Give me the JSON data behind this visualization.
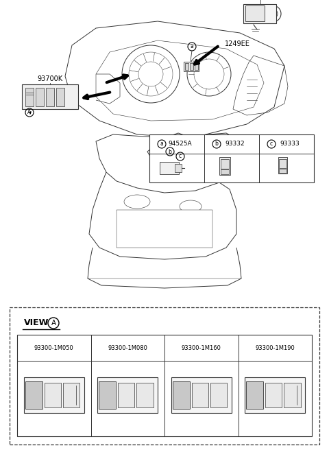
{
  "bg_color": "#ffffff",
  "fig_width": 4.8,
  "fig_height": 6.56,
  "dpi": 100,
  "gray": "#333333",
  "view_parts": [
    "93300-1M050",
    "93300-1M080",
    "93300-1M160",
    "93300-1M190"
  ],
  "table_parts": [
    {
      "letter": "a",
      "num": "94525A"
    },
    {
      "letter": "b",
      "num": "93332"
    },
    {
      "letter": "c",
      "num": "93333"
    }
  ],
  "label_93790G": [
    0.76,
    0.955
  ],
  "label_1249EE": [
    0.64,
    0.74
  ],
  "label_93700K": [
    0.085,
    0.835
  ]
}
